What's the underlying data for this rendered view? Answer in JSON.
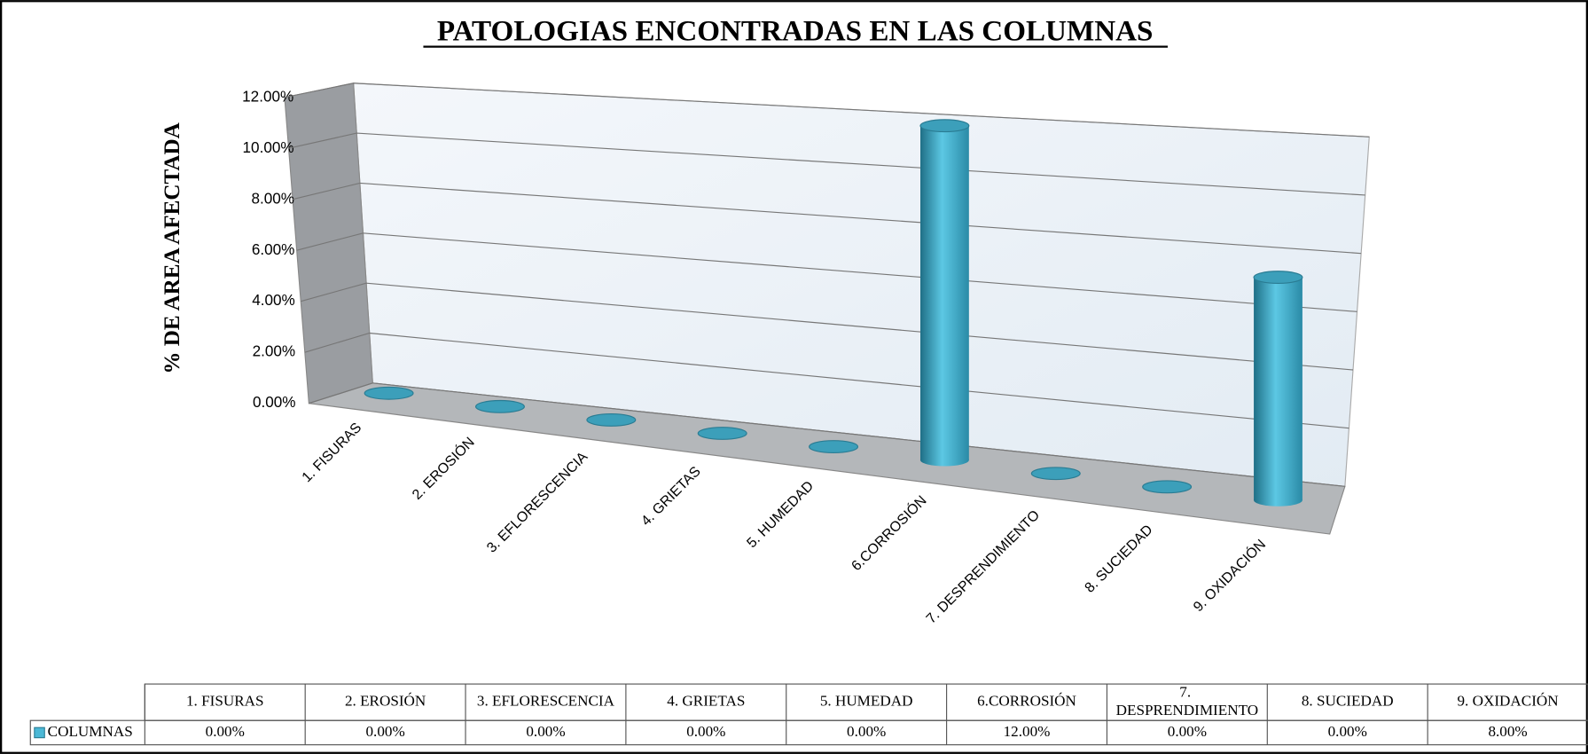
{
  "chart_data": {
    "type": "bar3d",
    "title": "PATOLOGIAS  ENCONTRADAS EN LAS COLUMNAS",
    "y_label": "% DE AREA  AFECTADA",
    "categories": [
      "1. FISURAS",
      "2. EROSIÓN",
      "3. EFLORESCENCIA",
      "4. GRIETAS",
      "5. HUMEDAD",
      "6.CORROSIÓN",
      "7. DESPRENDIMIENTO",
      "8. SUCIEDAD",
      "9. OXIDACIÓN"
    ],
    "series": [
      {
        "name": "COLUMNAS",
        "color": "#4bb8d6",
        "values": [
          0,
          0,
          0,
          0,
          0,
          12,
          0,
          0,
          8
        ],
        "value_labels": [
          "0.00%",
          "0.00%",
          "0.00%",
          "0.00%",
          "0.00%",
          "12.00%",
          "0.00%",
          "0.00%",
          "8.00%"
        ]
      }
    ],
    "ylim": [
      0,
      12
    ],
    "yticks": [
      {
        "value": 0,
        "label": "0.00%"
      },
      {
        "value": 2,
        "label": "2.00%"
      },
      {
        "value": 4,
        "label": "4.00%"
      },
      {
        "value": 6,
        "label": "6.00%"
      },
      {
        "value": 8,
        "label": "8.00%"
      },
      {
        "value": 10,
        "label": "10.00%"
      },
      {
        "value": 12,
        "label": "12.00%"
      }
    ],
    "grid": true,
    "data_table": true
  }
}
